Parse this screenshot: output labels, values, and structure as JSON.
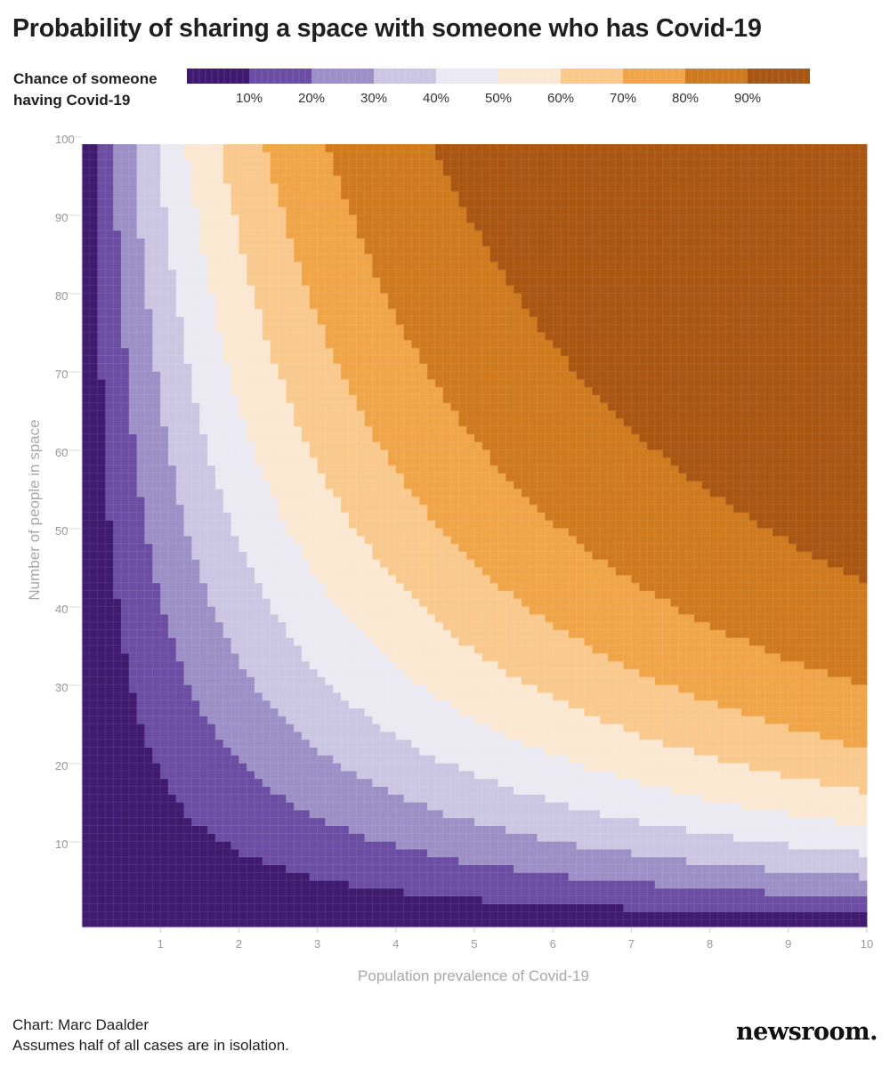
{
  "header": {
    "title": "Probability of sharing a space with someone who has Covid-19"
  },
  "legend": {
    "title_line1": "Chance of someone",
    "title_line2": "having Covid-19",
    "labels": [
      "10%",
      "20%",
      "30%",
      "40%",
      "50%",
      "60%",
      "70%",
      "80%",
      "90%"
    ],
    "colors": [
      "#3f1a6e",
      "#6b4ea3",
      "#9d90c6",
      "#cbc6e2",
      "#ebeaf3",
      "#fbe8d3",
      "#f9c98d",
      "#f0a548",
      "#cf7a1e",
      "#a95612"
    ]
  },
  "chart_data": {
    "type": "heatmap",
    "title": "Probability of sharing a space with someone who has Covid-19",
    "xlabel": "Population prevalence of Covid-19",
    "ylabel": "Number of people in space",
    "x_ticks": [
      "1",
      "2",
      "3",
      "4",
      "5",
      "6",
      "7",
      "8",
      "9",
      "10"
    ],
    "y_ticks": [
      "10",
      "20",
      "30",
      "40",
      "50",
      "60",
      "70",
      "80",
      "90",
      "100"
    ],
    "xlim": [
      0,
      10
    ],
    "ylim": [
      0,
      100
    ],
    "x_step": 0.1,
    "y_step": 1,
    "value": "chance that at least one person in the space has Covid-19, given half of all cases are in isolation",
    "bins": [
      0,
      10,
      20,
      30,
      40,
      50,
      60,
      70,
      80,
      90,
      100
    ]
  },
  "footer": {
    "credit": "Chart: Marc Daalder",
    "note": "Assumes half of all cases are in isolation."
  },
  "brand": {
    "name": "newsroom."
  }
}
